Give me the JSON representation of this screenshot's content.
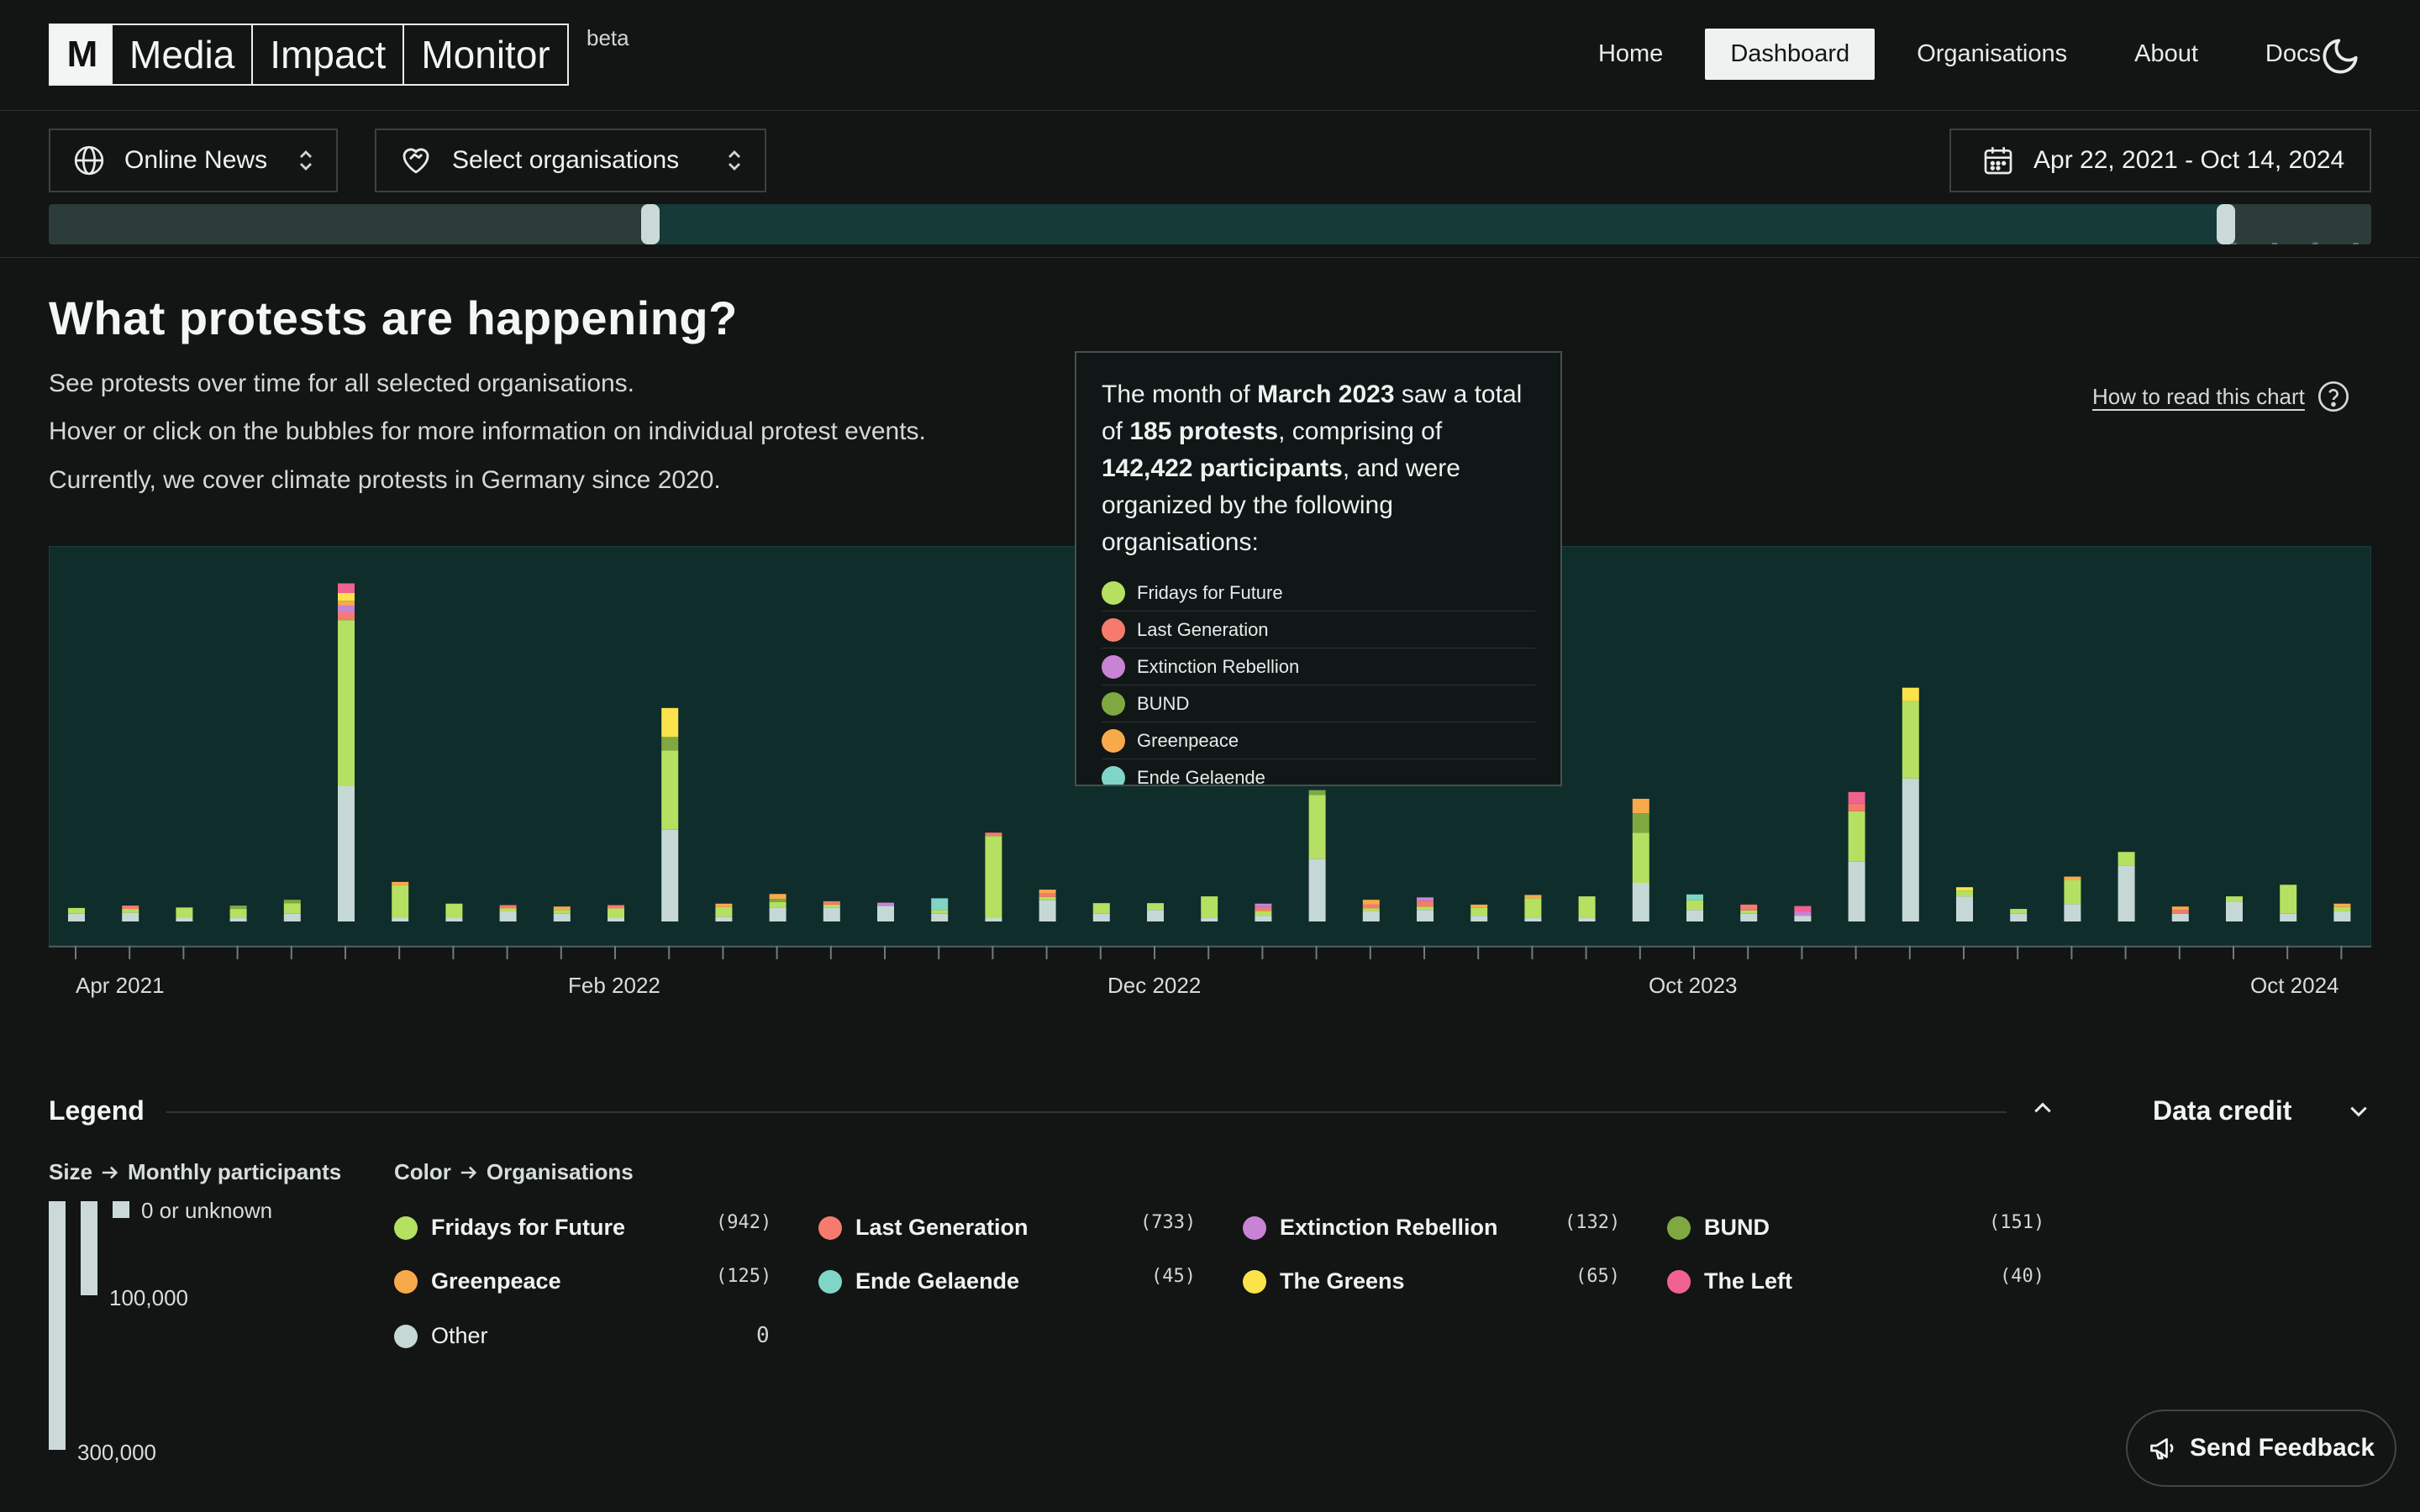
{
  "header": {
    "logo_mark": "M",
    "logo_words": [
      "Media",
      "Impact",
      "Monitor"
    ],
    "beta": "beta",
    "nav": [
      {
        "label": "Home",
        "active": false
      },
      {
        "label": "Dashboard",
        "active": true
      },
      {
        "label": "Organisations",
        "active": false
      },
      {
        "label": "About",
        "active": false
      },
      {
        "label": "Docs",
        "active": false
      }
    ],
    "theme_icon": "moon-icon"
  },
  "filters": {
    "media": "Online News",
    "organisations": "Select organisations",
    "date_range": "Apr 22, 2021 - Oct 14, 2024"
  },
  "intro": {
    "title": "What protests are happening?",
    "lines": [
      "See protests over time for all selected organisations.",
      "Hover or click on the bubbles for more information on individual protest events.",
      "Currently, we cover climate protests in Germany since 2020."
    ],
    "how_to_read": "How to read this chart"
  },
  "colors": {
    "Fridays for Future": "#b5e061",
    "Last Generation": "#f47b6e",
    "Extinction Rebellion": "#c883d4",
    "BUND": "#7fa840",
    "Greenpeace": "#f8aa4b",
    "Ende Gelaende": "#7fd6c6",
    "The Greens": "#fbe34a",
    "The Left": "#f0628f",
    "Other": "#c6d8d6"
  },
  "tooltip": {
    "pre_month": "The month of ",
    "month": "March 2023",
    "mid1": " saw a total of ",
    "protests": "185 protests",
    "mid2": ", comprising of ",
    "participants": "142,422 participants",
    "post": ", and were organized by the following organisations:",
    "orgs": [
      "Fridays for Future",
      "Last Generation",
      "Extinction Rebellion",
      "BUND",
      "Greenpeace",
      "Ende Gelaende"
    ]
  },
  "chart_data": {
    "type": "bar",
    "stacked": true,
    "x_ticks": [
      "Apr 2021",
      "Feb 2022",
      "Dec 2022",
      "Oct 2023",
      "Oct 2024"
    ],
    "y_unit": "Monthly participants",
    "series_order": [
      "Other",
      "Fridays for Future",
      "Last Generation",
      "Extinction Rebellion",
      "BUND",
      "Greenpeace",
      "Ende Gelaende",
      "The Greens",
      "The Left"
    ],
    "months": [
      {
        "Other": 8000,
        "Fridays for Future": 6000
      },
      {
        "Other": 9000,
        "Fridays for Future": 4000,
        "Last Generation": 1500
      },
      {
        "Other": 3000,
        "Fridays for Future": 11000
      },
      {
        "Other": 4000,
        "Fridays for Future": 9000,
        "BUND": 1500
      },
      {
        "Other": 8000,
        "Fridays for Future": 11000,
        "BUND": 2000
      },
      {
        "Other": 140000,
        "Fridays for Future": 172000,
        "Last Generation": 8000,
        "Extinction Rebellion": 7000,
        "The Greens": 8000,
        "Greenpeace": 5000,
        "The Left": 10000
      },
      {
        "Other": 3000,
        "Fridays for Future": 34000,
        "Greenpeace": 2000
      },
      {
        "Other": 3000,
        "Fridays for Future": 15000
      },
      {
        "Other": 10000,
        "Last Generation": 2000,
        "Fridays for Future": 2000
      },
      {
        "Other": 8000,
        "Fridays for Future": 4000,
        "Greenpeace": 3000
      },
      {
        "Other": 3000,
        "Fridays for Future": 10000,
        "Last Generation": 2000
      },
      {
        "Other": 95000,
        "BUND": 14000,
        "The Greens": 30000,
        "Fridays for Future": 82000
      },
      {
        "Other": 5000,
        "Fridays for Future": 10000,
        "Greenpeace": 2000
      },
      {
        "Other": 14000,
        "Greenpeace": 5000,
        "Fridays for Future": 6000,
        "BUND": 2000
      },
      {
        "Other": 14000,
        "Last Generation": 1500,
        "Fridays for Future": 1500
      },
      {
        "Other": 16000,
        "Extinction Rebellion": 2000
      },
      {
        "Other": 8000,
        "Fridays for Future": 4000,
        "Ende Gelaende": 12000
      },
      {
        "Other": 3000,
        "Last Generation": 2000,
        "Fridays for Future": 85000
      },
      {
        "Other": 22000,
        "Greenpeace": 4000,
        "Last Generation": 2000,
        "Fridays for Future": 2000
      },
      {
        "Other": 8000,
        "Fridays for Future": 11000
      },
      {
        "Other": 12000,
        "Fridays for Future": 7000
      },
      {
        "Other": 4000,
        "Fridays for Future": 22000
      },
      {
        "Other": 6000,
        "Extinction Rebellion": 3000,
        "Last Generation": 4000,
        "Fridays for Future": 5000
      },
      {
        "Other": 65000,
        "BUND": 5000,
        "Fridays for Future": 66000
      },
      {
        "Other": 10000,
        "Greenpeace": 5000,
        "Last Generation": 4000,
        "Fridays for Future": 3000
      },
      {
        "Other": 12000,
        "Extinction Rebellion": 3000,
        "Last Generation": 6000,
        "Fridays for Future": 2000
      },
      {
        "Other": 6000,
        "Fridays for Future": 8000,
        "Greenpeace": 3000
      },
      {
        "Other": 4000,
        "Greenpeace": 2000,
        "Fridays for Future": 20000
      },
      {
        "Other": 4000,
        "Fridays for Future": 22000
      },
      {
        "Other": 40000,
        "Greenpeace": 15000,
        "BUND": 20000,
        "Fridays for Future": 52000
      },
      {
        "Other": 12000,
        "Ende Gelaende": 6000,
        "Fridays for Future": 10000
      },
      {
        "Other": 8000,
        "Fridays for Future": 3000,
        "Last Generation": 6000
      },
      {
        "Other": 6000,
        "Extinction Rebellion": 4000,
        "The Left": 6000
      },
      {
        "Other": 62000,
        "The Left": 12000,
        "Last Generation": 8000,
        "Fridays for Future": 52000
      },
      {
        "Other": 148000,
        "The Greens": 14000,
        "Fridays for Future": 80000
      },
      {
        "Other": 26000,
        "The Greens": 3000,
        "Fridays for Future": 6000
      },
      {
        "Other": 8000,
        "Fridays for Future": 5000
      },
      {
        "Other": 18000,
        "Greenpeace": 3000,
        "Fridays for Future": 25000
      },
      {
        "Other": 58000,
        "Fridays for Future": 14000
      },
      {
        "Other": 8000,
        "Last Generation": 4000,
        "Greenpeace": 3000
      },
      {
        "Other": 20000,
        "Fridays for Future": 6000
      },
      {
        "Other": 8000,
        "Fridays for Future": 30000
      },
      {
        "Other": 10000,
        "Greenpeace": 3000,
        "Fridays for Future": 5000
      }
    ]
  },
  "legend": {
    "title": "Legend",
    "size_heading": "Size",
    "size_heading_target": "Monthly participants",
    "size_labels": [
      "0 or unknown",
      "100,000",
      "300,000"
    ],
    "color_heading": "Color",
    "color_heading_target": "Organisations",
    "orgs": [
      {
        "name": "Fridays for Future",
        "count": "(942)"
      },
      {
        "name": "Last Generation",
        "count": "(733)"
      },
      {
        "name": "Extinction Rebellion",
        "count": "(132)"
      },
      {
        "name": "BUND",
        "count": "(151)"
      },
      {
        "name": "Greenpeace",
        "count": "(125)"
      },
      {
        "name": "Ende Gelaende",
        "count": "(45)"
      },
      {
        "name": "The Greens",
        "count": "(65)"
      },
      {
        "name": "The Left",
        "count": "(40)"
      },
      {
        "name": "Other",
        "count": "0"
      }
    ]
  },
  "data_credit": "Data credit",
  "feedback": "Send Feedback"
}
